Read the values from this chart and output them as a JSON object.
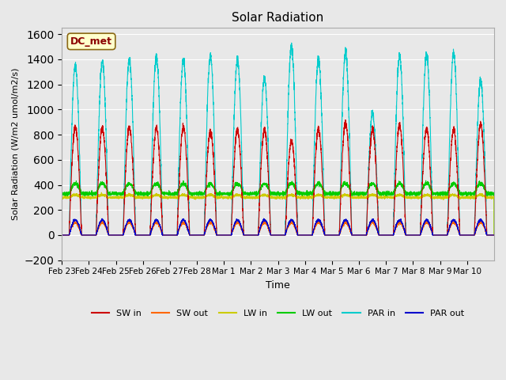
{
  "title": "Solar Radiation",
  "ylabel": "Solar Radiation (W/m2 umol/m2/s)",
  "xlabel": "Time",
  "ylim": [
    -200,
    1650
  ],
  "yticks": [
    -200,
    0,
    200,
    400,
    600,
    800,
    1000,
    1200,
    1400,
    1600
  ],
  "annotation": "DC_met",
  "background_color": "#e8e8e8",
  "colors": {
    "SW_in": "#cc0000",
    "SW_out": "#ff6600",
    "LW_in": "#cccc00",
    "LW_out": "#00cc00",
    "PAR_in": "#00cccc",
    "PAR_out": "#0000cc"
  },
  "n_days": 16,
  "x_tick_labels": [
    "Feb 23",
    "Feb 24",
    "Feb 25",
    "Feb 26",
    "Feb 27",
    "Feb 28",
    "Mar 1",
    "Mar 2",
    "Mar 3",
    "Mar 4",
    "Mar 5",
    "Mar 6",
    "Mar 7",
    "Mar 8",
    "Mar 9",
    "Mar 10"
  ],
  "legend_entries": [
    "SW in",
    "SW out",
    "LW in",
    "LW out",
    "PAR in",
    "PAR out"
  ]
}
